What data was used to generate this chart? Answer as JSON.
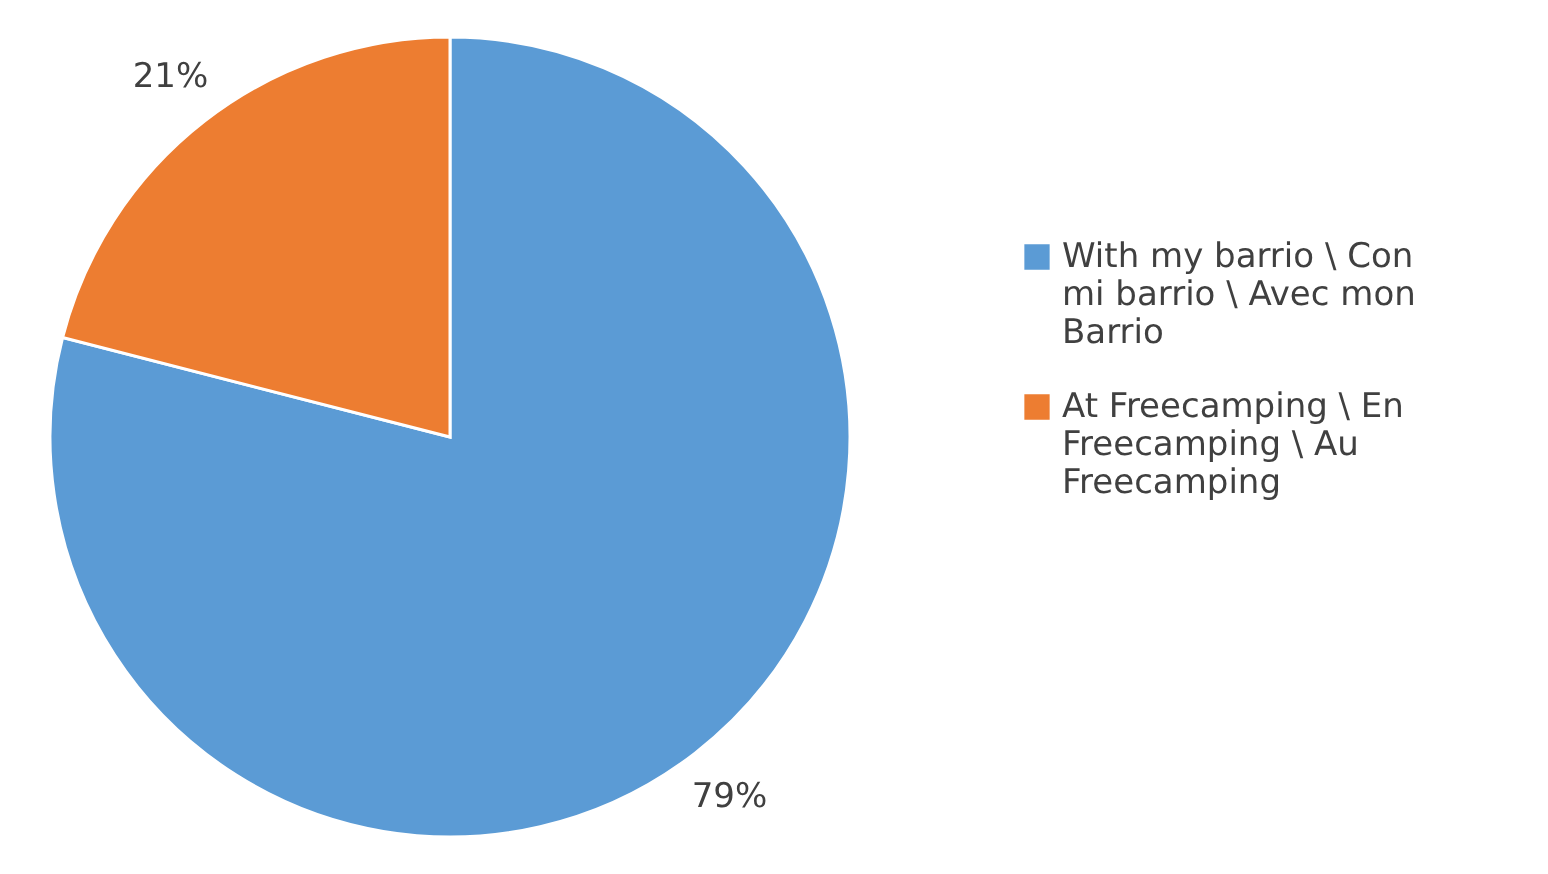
{
  "chart_data": {
    "type": "pie",
    "categories": [
      "With my barrio \\ Con mi barrio \\ Avec mon Barrio",
      "At Freecamping \\ En Freecamping \\ Au Freecamping"
    ],
    "values": [
      79,
      21
    ],
    "colors": [
      "#5b9bd5",
      "#ed7d31"
    ],
    "value_labels": [
      "79%",
      "21%"
    ],
    "legend": "right"
  }
}
